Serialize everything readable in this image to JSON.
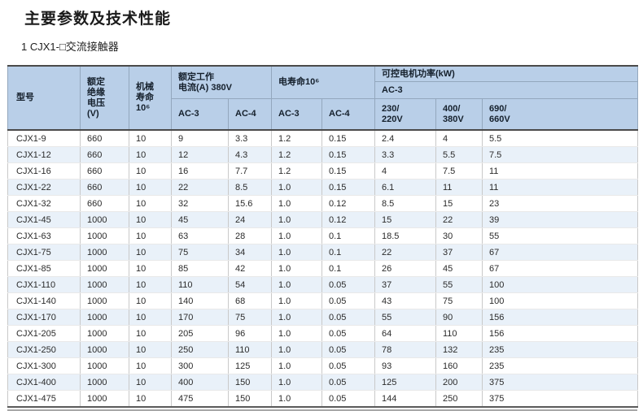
{
  "page": {
    "title": "主要参数及技术性能",
    "subtitle": "1 CJX1-□交流接触器"
  },
  "colors": {
    "header_bg": "#b9cfe8",
    "row_stripe": "#e9f1f9",
    "table_border_dark": "#4a4a4a",
    "cell_border": "#c9c9c9"
  },
  "table": {
    "header": {
      "model": "型号",
      "insulation_voltage": "额定\n绝缘\n电压\n(V)",
      "mech_life": "机械\n寿命\n10⁶",
      "rated_current": "额定工作\n电流(A) 380V",
      "elec_life": "电寿命10⁶",
      "motor_power": "可控电机功率(kW)",
      "motor_power_ac3": "AC-3",
      "sub": {
        "current_ac3": "AC-3",
        "current_ac4": "AC-4",
        "life_ac3": "AC-3",
        "life_ac4": "AC-4",
        "v230": "230/\n220V",
        "v400": "400/\n380V",
        "v690": "690/\n660V"
      }
    },
    "rows": [
      [
        "CJX1-9",
        "660",
        "10",
        "9",
        "3.3",
        "1.2",
        "0.15",
        "2.4",
        "4",
        "5.5"
      ],
      [
        "CJX1-12",
        "660",
        "10",
        "12",
        "4.3",
        "1.2",
        "0.15",
        "3.3",
        "5.5",
        "7.5"
      ],
      [
        "CJX1-16",
        "660",
        "10",
        "16",
        "7.7",
        "1.2",
        "0.15",
        "4",
        "7.5",
        "11"
      ],
      [
        "CJX1-22",
        "660",
        "10",
        "22",
        "8.5",
        "1.0",
        "0.15",
        "6.1",
        "11",
        "11"
      ],
      [
        "CJX1-32",
        "660",
        "10",
        "32",
        "15.6",
        "1.0",
        "0.12",
        "8.5",
        "15",
        "23"
      ],
      [
        "CJX1-45",
        "1000",
        "10",
        "45",
        "24",
        "1.0",
        "0.12",
        "15",
        "22",
        "39"
      ],
      [
        "CJX1-63",
        "1000",
        "10",
        "63",
        "28",
        "1.0",
        "0.1",
        "18.5",
        "30",
        "55"
      ],
      [
        "CJX1-75",
        "1000",
        "10",
        "75",
        "34",
        "1.0",
        "0.1",
        "22",
        "37",
        "67"
      ],
      [
        "CJX1-85",
        "1000",
        "10",
        "85",
        "42",
        "1.0",
        "0.1",
        "26",
        "45",
        "67"
      ],
      [
        "CJX1-110",
        "1000",
        "10",
        "110",
        "54",
        "1.0",
        "0.05",
        "37",
        "55",
        "100"
      ],
      [
        "CJX1-140",
        "1000",
        "10",
        "140",
        "68",
        "1.0",
        "0.05",
        "43",
        "75",
        "100"
      ],
      [
        "CJX1-170",
        "1000",
        "10",
        "170",
        "75",
        "1.0",
        "0.05",
        "55",
        "90",
        "156"
      ],
      [
        "CJX1-205",
        "1000",
        "10",
        "205",
        "96",
        "1.0",
        "0.05",
        "64",
        "110",
        "156"
      ],
      [
        "CJX1-250",
        "1000",
        "10",
        "250",
        "110",
        "1.0",
        "0.05",
        "78",
        "132",
        "235"
      ],
      [
        "CJX1-300",
        "1000",
        "10",
        "300",
        "125",
        "1.0",
        "0.05",
        "93",
        "160",
        "235"
      ],
      [
        "CJX1-400",
        "1000",
        "10",
        "400",
        "150",
        "1.0",
        "0.05",
        "125",
        "200",
        "375"
      ],
      [
        "CJX1-475",
        "1000",
        "10",
        "475",
        "150",
        "1.0",
        "0.05",
        "144",
        "250",
        "375"
      ]
    ]
  }
}
